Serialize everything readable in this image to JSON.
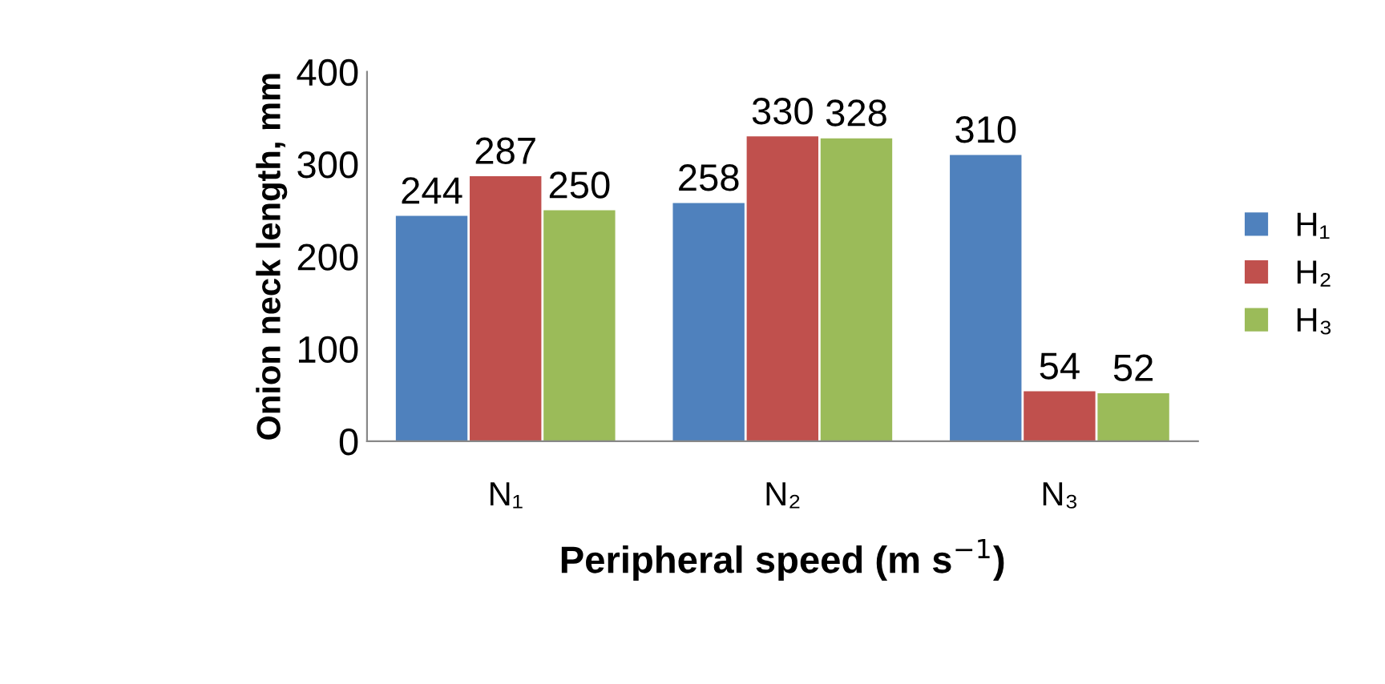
{
  "chart_data": {
    "type": "bar",
    "xlabel": "Peripheral speed (m s$^{−1}$)",
    "ylabel": "Onion neck length, mm",
    "categories": [
      "N₁",
      "N₂",
      "N₃"
    ],
    "series": [
      {
        "name": "H₁",
        "color": "#4f81bd",
        "values": [
          244,
          258,
          310
        ]
      },
      {
        "name": "H₂",
        "color": "#c0504d",
        "values": [
          287,
          330,
          54
        ]
      },
      {
        "name": "H₃",
        "color": "#9bbb59",
        "values": [
          250,
          328,
          52
        ]
      }
    ],
    "ylim": [
      0,
      400
    ],
    "yticks": [
      0,
      100,
      200,
      300,
      400
    ],
    "grid": false,
    "legend": "right",
    "data_labels": true
  }
}
